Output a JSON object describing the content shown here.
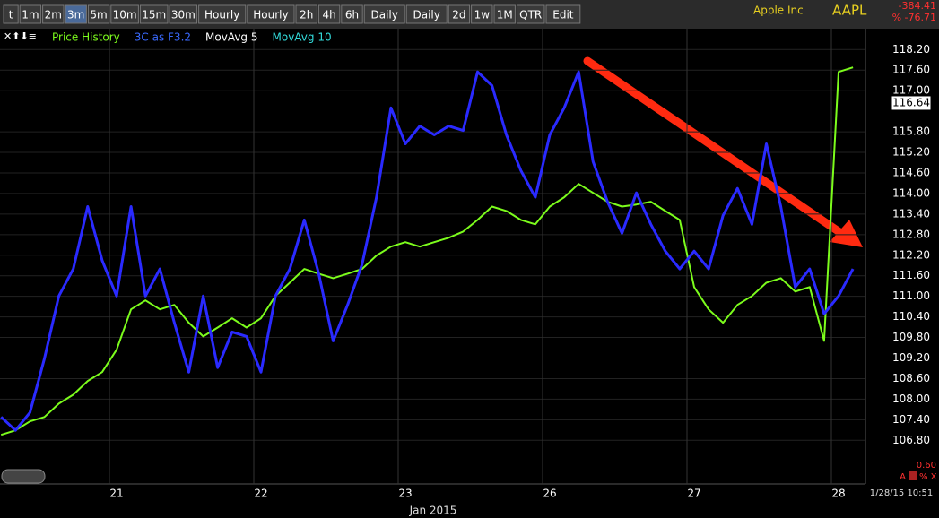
{
  "toolbar": {
    "buttons": [
      "t",
      "1m",
      "2m",
      "3m",
      "5m",
      "10m",
      "15m",
      "30m",
      "Hourly",
      "Hourly",
      "2h",
      "4h",
      "6h",
      "Daily",
      "Daily",
      "2d",
      "1w",
      "1M",
      "QTR",
      "Edit"
    ],
    "active": 3
  },
  "header": {
    "company": "Apple Inc",
    "symbol": "AAPL",
    "change": "-384.41",
    "change_pct": "% -76.71",
    "footer_value": "0.60",
    "footer_buttons": "A",
    "footer_pct": "% X"
  },
  "chart_data": {
    "type": "line",
    "categories": [
      null,
      null,
      null,
      null,
      null,
      null,
      null,
      null,
      "21",
      null,
      null,
      null,
      null,
      null,
      null,
      null,
      null,
      null,
      "22",
      null,
      null,
      null,
      null,
      null,
      null,
      null,
      null,
      null,
      "23",
      null,
      null,
      null,
      null,
      null,
      null,
      null,
      null,
      null,
      "26",
      null,
      null,
      null,
      null,
      null,
      null,
      null,
      null,
      null,
      "27",
      null,
      null,
      null,
      null,
      null,
      null,
      null,
      null,
      null,
      "28",
      null
    ],
    "x_label": "Jan 2015",
    "timestamp": "1/28/15 10:51",
    "series": [
      {
        "name": "Price History",
        "color": "#7cfc1c",
        "values": [
          106.96,
          107.09,
          107.35,
          107.48,
          107.87,
          108.13,
          108.53,
          108.79,
          109.44,
          110.62,
          110.88,
          110.62,
          110.75,
          110.23,
          109.83,
          110.09,
          110.36,
          110.09,
          110.36,
          111.01,
          111.4,
          111.8,
          111.66,
          111.53,
          111.66,
          111.8,
          112.19,
          112.45,
          112.58,
          112.45,
          112.58,
          112.71,
          112.89,
          113.23,
          113.62,
          113.49,
          113.23,
          113.1,
          113.62,
          113.89,
          114.28,
          114.02,
          113.76,
          113.62,
          113.68,
          113.76,
          113.49,
          113.23,
          111.27,
          110.62,
          110.23,
          110.75,
          111.01,
          111.4,
          111.53,
          111.14,
          111.27,
          109.7,
          117.55,
          117.68
        ]
      },
      {
        "name": "3C as F3.2",
        "color": "#2a2aff",
        "values": [
          107.48,
          107.09,
          107.61,
          109.18,
          111.01,
          111.8,
          113.62,
          112.05,
          111.01,
          113.62,
          111.01,
          111.8,
          110.23,
          108.79,
          111.01,
          108.92,
          109.96,
          109.83,
          108.79,
          111.01,
          111.8,
          113.23,
          111.66,
          109.7,
          110.75,
          111.93,
          113.89,
          116.5,
          115.45,
          115.97,
          115.71,
          115.97,
          115.84,
          117.55,
          117.15,
          115.71,
          114.67,
          113.89,
          115.71,
          116.5,
          117.55,
          114.93,
          113.76,
          112.84,
          114.02,
          113.1,
          112.32,
          111.8,
          112.32,
          111.8,
          113.36,
          114.15,
          113.1,
          115.45,
          113.62,
          111.27,
          111.8,
          110.49,
          111.01,
          111.8
        ]
      }
    ],
    "indicators": [
      {
        "name": "MovAvg 5",
        "color": "#ffffff"
      },
      {
        "name": "MovAvg 10",
        "color": "#33dddd"
      }
    ],
    "ylim": [
      105.5,
      118.6
    ],
    "yticks": [
      {
        "value": 106.8,
        "label": "106.80"
      },
      {
        "value": 107.4,
        "label": "107.40"
      },
      {
        "value": 108,
        "label": "108.00"
      },
      {
        "value": 108.6,
        "label": "108.60"
      },
      {
        "value": 109.2,
        "label": "109.20"
      },
      {
        "value": 109.8,
        "label": "109.80"
      },
      {
        "value": 110.4,
        "label": "110.40"
      },
      {
        "value": 111,
        "label": "111.00"
      },
      {
        "value": 111.6,
        "label": "111.60"
      },
      {
        "value": 112.2,
        "label": "112.20"
      },
      {
        "value": 112.8,
        "label": "112.80"
      },
      {
        "value": 113.4,
        "label": "113.40"
      },
      {
        "value": 114,
        "label": "114.00"
      },
      {
        "value": 114.6,
        "label": "114.60"
      },
      {
        "value": 115.2,
        "label": "115.20"
      },
      {
        "value": 115.8,
        "label": "115.80"
      },
      {
        "value": 117,
        "label": "117.00"
      },
      {
        "value": 117.6,
        "label": "117.60"
      },
      {
        "value": 118.2,
        "label": "118.20"
      }
    ],
    "last_price": 116.64,
    "grid": true
  }
}
